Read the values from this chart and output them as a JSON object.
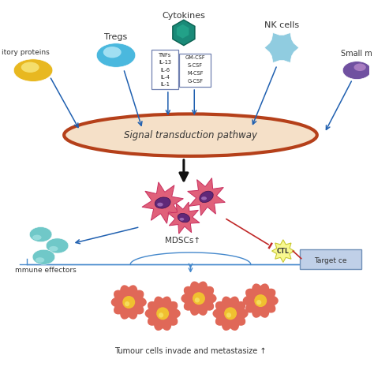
{
  "bg_color": "#ffffff",
  "title": "Signal transduction pathway",
  "bottom_text": "Tumour cells invade and metastasize ↑",
  "mdsc_label": "MDSCs↑",
  "labels": {
    "tregs": "Tregs",
    "cytokines": "Cytokines",
    "nk_cells": "NK cells",
    "inhibitory": "itory proteins",
    "small_m": "Small m",
    "immune_effectors": "mmune effectors",
    "ctl": "CTL",
    "target_cell": "Target ce"
  },
  "cytokine_box1": [
    "IL-1",
    "IL-4",
    "IL-6",
    "IL-13",
    "TNFs"
  ],
  "cytokine_box2": [
    "G-CSF",
    "M-CSF",
    "S-CSF",
    "GM-CSF"
  ],
  "colors": {
    "signal_ellipse_fill": "#f5e0c8",
    "signal_ellipse_border": "#b5401a",
    "tregs_outer": "#4ab8de",
    "tregs_inner": "#b8eaf8",
    "inhibitory_outer": "#e8b820",
    "inhibitory_inner": "#f8e880",
    "nk_cell": "#90cce0",
    "small_m_outer": "#7050a0",
    "small_m_inner": "#c090d0",
    "cytokine_hex": "#1a8a78",
    "mdsc_body": "#e0607a",
    "mdsc_spike": "#c83060",
    "mdsc_nucleus": "#602878",
    "immune_cell": "#70c8c8",
    "tumour_outer": "#e06858",
    "tumour_inner": "#f0c030",
    "arrow_blue": "#2060b0",
    "arrow_black": "#111111",
    "arrow_red": "#c02828",
    "box_border": "#7080b0",
    "ctl_fill": "#f8f890",
    "ctl_border": "#c8c830",
    "target_fill": "#c0d0e8",
    "target_border": "#7090b8",
    "bottom_line": "#4488cc"
  },
  "fig_w": 4.74,
  "fig_h": 4.74,
  "dpi": 100
}
